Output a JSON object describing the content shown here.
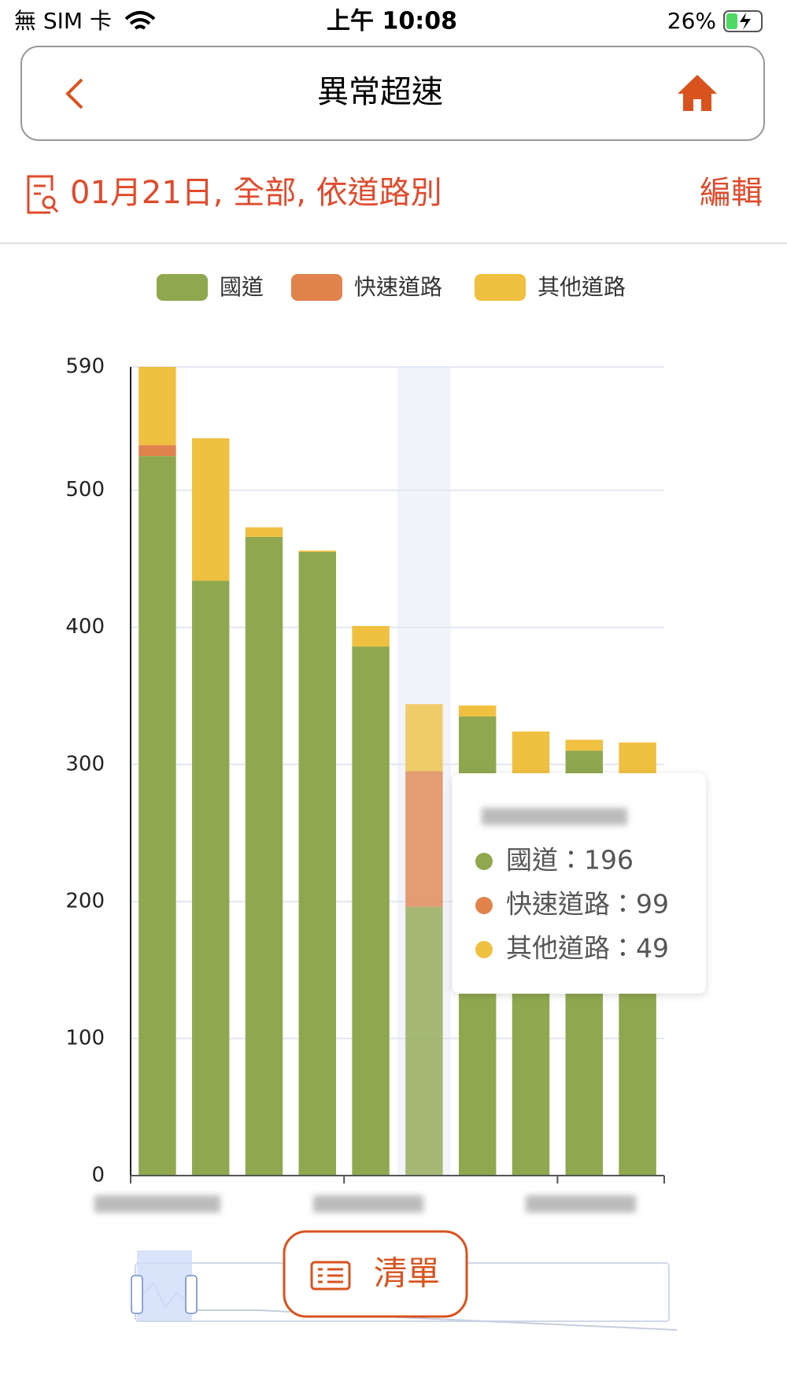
{
  "status_bar": {
    "carrier": "無 SIM 卡",
    "time": "上午 10:08",
    "battery": "26%"
  },
  "header": {
    "title": "異常超速"
  },
  "filter": {
    "summary": "01月21日, 全部, 依道路別",
    "edit": "編輯"
  },
  "list_button": "清單",
  "chart_data": {
    "type": "bar",
    "stacked": true,
    "categories": [
      null,
      null,
      null,
      null,
      null,
      null,
      null,
      null,
      null,
      null
    ],
    "series": [
      {
        "name": "國道",
        "color": "#8fa84f",
        "values": [
          525,
          434,
          466,
          455,
          386,
          196,
          335,
          292,
          310,
          290
        ]
      },
      {
        "name": "快速道路",
        "color": "#e0834c",
        "values": [
          8,
          0,
          0,
          0,
          0,
          99,
          0,
          0,
          0,
          0
        ]
      },
      {
        "name": "其他道路",
        "color": "#f0c040",
        "values": [
          57,
          104,
          7,
          1,
          15,
          49,
          8,
          32,
          8,
          26
        ]
      }
    ],
    "ylim": [
      0,
      590
    ],
    "yticks": [
      0,
      100,
      200,
      300,
      400,
      500,
      590
    ],
    "grid": true,
    "tooltip": {
      "lines": [
        "國道：196",
        "快速道路：99",
        "其他道路：49"
      ]
    }
  }
}
